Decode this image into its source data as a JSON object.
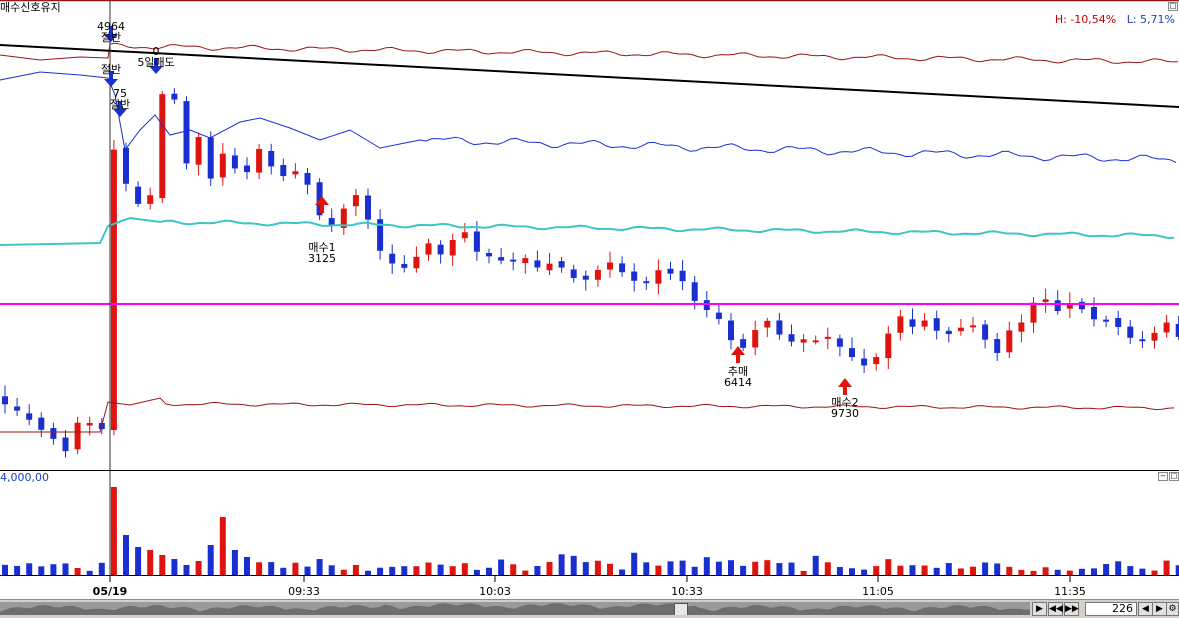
{
  "header": {
    "title": "매수신호유지",
    "high_label": "H: -10,54%",
    "low_label": "L: 5,71%"
  },
  "volume_panel": {
    "scale_label": "4,000,00"
  },
  "x_axis": {
    "ticks": [
      {
        "label": "05/19",
        "bold": true
      },
      {
        "label": "09:33"
      },
      {
        "label": "10:03"
      },
      {
        "label": "10:33"
      },
      {
        "label": "11:05"
      },
      {
        "label": "11:35"
      }
    ]
  },
  "annotations": [
    {
      "id": "sell-half-1",
      "lines": [
        "4964",
        "절반"
      ],
      "kind": "sell"
    },
    {
      "id": "sell-half-2",
      "lines": [
        "절반"
      ],
      "kind": "sell"
    },
    {
      "id": "sell-half-3",
      "lines": [
        "75",
        "절반"
      ],
      "kind": "sell"
    },
    {
      "id": "sell-5day",
      "lines": [
        "0",
        "5일매도"
      ],
      "kind": "sell"
    },
    {
      "id": "buy-1",
      "lines": [
        "매수1",
        "3125"
      ],
      "kind": "buy"
    },
    {
      "id": "chase-buy",
      "lines": [
        "추매",
        "6414"
      ],
      "kind": "buy"
    },
    {
      "id": "buy-2",
      "lines": [
        "매수2",
        "9730"
      ],
      "kind": "buy"
    }
  ],
  "colors": {
    "up": "#e0140f",
    "down": "#1a2fd0",
    "ma_black": "#000000",
    "band_red": "#9b1414",
    "band_blue": "#1a2fd0",
    "ma_cyan": "#3cc6c4",
    "level_magenta": "#ff00ff"
  },
  "navigator": {
    "count": "226"
  },
  "chart_data": {
    "type": "candlestick",
    "title": "매수신호유지",
    "candles_count": 98,
    "reference_level_note": "magenta horizontal reference line",
    "series": [
      {
        "name": "price",
        "kind": "candle"
      },
      {
        "name": "volume",
        "kind": "bar"
      }
    ]
  }
}
